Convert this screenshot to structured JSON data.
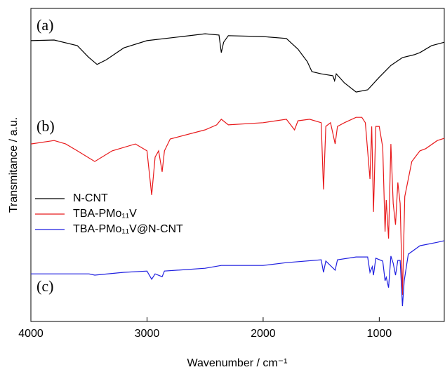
{
  "chart_data": {
    "type": "line",
    "x_label": "Wavenumber / cm⁻¹",
    "y_label": "Transmitance / a.u.",
    "annotations": [
      "(a)",
      "(b)",
      "(c)"
    ],
    "xlim": [
      4000,
      440
    ],
    "xticks": [
      4000,
      3000,
      2000,
      1000
    ],
    "ylim": [
      0,
      100
    ],
    "legend": "center left",
    "series": [
      {
        "name": "N-CNT",
        "color": "#000000",
        "x": [
          4000,
          3800,
          3600,
          3500,
          3430,
          3350,
          3200,
          3000,
          2700,
          2500,
          2380,
          2360,
          2340,
          2300,
          2000,
          1800,
          1700,
          1620,
          1580,
          1500,
          1400,
          1385,
          1370,
          1300,
          1200,
          1100,
          1000,
          900,
          800,
          700,
          650,
          550,
          440
        ],
        "values": [
          89.7,
          89.9,
          88.1,
          84.3,
          82.1,
          83.6,
          87.4,
          89.7,
          91.0,
          91.9,
          91.5,
          85.9,
          89.2,
          91.3,
          91.0,
          90.4,
          87.0,
          83.0,
          79.8,
          79.1,
          78.5,
          76.9,
          79.1,
          76.2,
          73.3,
          74.0,
          78.0,
          81.8,
          84.3,
          85.2,
          85.9,
          88.1,
          89.2
        ]
      },
      {
        "name": "TBA-PMo₁₁V",
        "color": "#e8191b",
        "x": [
          4000,
          3800,
          3700,
          3600,
          3450,
          3300,
          3100,
          3000,
          2960,
          2930,
          2900,
          2870,
          2850,
          2800,
          2500,
          2400,
          2360,
          2300,
          2000,
          1800,
          1730,
          1700,
          1600,
          1500,
          1480,
          1460,
          1420,
          1380,
          1360,
          1300,
          1200,
          1150,
          1120,
          1080,
          1065,
          1050,
          1030,
          1000,
          970,
          950,
          940,
          920,
          900,
          880,
          860,
          840,
          820,
          800,
          780,
          720,
          650,
          600,
          500,
          440
        ],
        "values": [
          56.7,
          57.8,
          56.7,
          54.5,
          51.1,
          54.5,
          56.7,
          54.5,
          40.4,
          52.5,
          54.5,
          47.8,
          54.5,
          58.3,
          61.2,
          62.8,
          64.6,
          62.8,
          63.5,
          64.6,
          61.2,
          64.1,
          64.6,
          63.5,
          42.2,
          62.3,
          63.5,
          56.7,
          62.3,
          63.5,
          65.2,
          65.2,
          63.5,
          45.5,
          62.3,
          35.0,
          62.3,
          62.3,
          55.6,
          28.7,
          38.8,
          26.5,
          56.7,
          37.7,
          30.9,
          44.4,
          37.7,
          8.5,
          39.9,
          51.1,
          54.5,
          55.2,
          57.8,
          58.5
        ]
      },
      {
        "name": "TBA-PMo₁₁V@N-CNT",
        "color": "#1f1fe0",
        "x": [
          4000,
          3500,
          3450,
          3200,
          3000,
          2960,
          2930,
          2870,
          2850,
          2500,
          2360,
          2000,
          1800,
          1500,
          1480,
          1460,
          1380,
          1360,
          1200,
          1100,
          1080,
          1060,
          1050,
          1030,
          970,
          950,
          940,
          920,
          900,
          880,
          860,
          840,
          820,
          800,
          785,
          750,
          650,
          500,
          440
        ],
        "values": [
          15.2,
          15.2,
          14.8,
          15.7,
          16.1,
          13.5,
          15.2,
          14.3,
          16.1,
          17.0,
          17.9,
          17.9,
          18.8,
          19.7,
          15.7,
          19.3,
          16.4,
          19.7,
          20.6,
          20.6,
          15.7,
          17.5,
          14.8,
          20.2,
          19.3,
          13.0,
          14.1,
          10.8,
          20.9,
          18.6,
          14.8,
          19.5,
          19.5,
          4.9,
          13.0,
          21.5,
          24.2,
          25.3,
          25.8
        ]
      }
    ]
  }
}
